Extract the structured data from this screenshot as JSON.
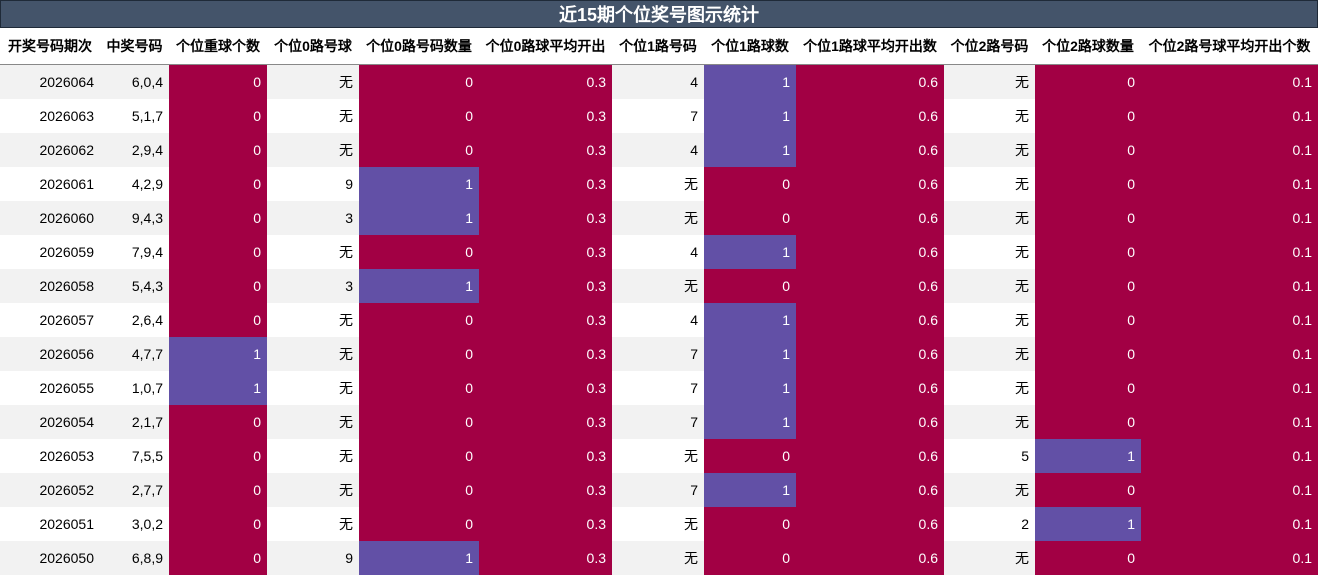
{
  "title": "近15期个位奖号图示统计",
  "colors": {
    "title_bg": "#44546a",
    "zero": "#a20044",
    "one": "#6250a6",
    "stripe": "#f2f2f2"
  },
  "columns": [
    "开奖号码期次",
    "中奖号码",
    "个位重球个数",
    "个位0路号球",
    "个位0路号码数量",
    "个位0路球平均开出",
    "个位1路号码",
    "个位1路球数",
    "个位1路球平均开出数",
    "个位2路号码",
    "个位2路球数量",
    "个位2路号球平均开出个数"
  ],
  "rows": [
    [
      "2026064",
      "6,0,4",
      "0",
      "无",
      "0",
      "0.3",
      "4",
      "1",
      "0.6",
      "无",
      "0",
      "0.1"
    ],
    [
      "2026063",
      "5,1,7",
      "0",
      "无",
      "0",
      "0.3",
      "7",
      "1",
      "0.6",
      "无",
      "0",
      "0.1"
    ],
    [
      "2026062",
      "2,9,4",
      "0",
      "无",
      "0",
      "0.3",
      "4",
      "1",
      "0.6",
      "无",
      "0",
      "0.1"
    ],
    [
      "2026061",
      "4,2,9",
      "0",
      "9",
      "1",
      "0.3",
      "无",
      "0",
      "0.6",
      "无",
      "0",
      "0.1"
    ],
    [
      "2026060",
      "9,4,3",
      "0",
      "3",
      "1",
      "0.3",
      "无",
      "0",
      "0.6",
      "无",
      "0",
      "0.1"
    ],
    [
      "2026059",
      "7,9,4",
      "0",
      "无",
      "0",
      "0.3",
      "4",
      "1",
      "0.6",
      "无",
      "0",
      "0.1"
    ],
    [
      "2026058",
      "5,4,3",
      "0",
      "3",
      "1",
      "0.3",
      "无",
      "0",
      "0.6",
      "无",
      "0",
      "0.1"
    ],
    [
      "2026057",
      "2,6,4",
      "0",
      "无",
      "0",
      "0.3",
      "4",
      "1",
      "0.6",
      "无",
      "0",
      "0.1"
    ],
    [
      "2026056",
      "4,7,7",
      "1",
      "无",
      "0",
      "0.3",
      "7",
      "1",
      "0.6",
      "无",
      "0",
      "0.1"
    ],
    [
      "2026055",
      "1,0,7",
      "1",
      "无",
      "0",
      "0.3",
      "7",
      "1",
      "0.6",
      "无",
      "0",
      "0.1"
    ],
    [
      "2026054",
      "2,1,7",
      "0",
      "无",
      "0",
      "0.3",
      "7",
      "1",
      "0.6",
      "无",
      "0",
      "0.1"
    ],
    [
      "2026053",
      "7,5,5",
      "0",
      "无",
      "0",
      "0.3",
      "无",
      "0",
      "0.6",
      "5",
      "1",
      "0.1"
    ],
    [
      "2026052",
      "2,7,7",
      "0",
      "无",
      "0",
      "0.3",
      "7",
      "1",
      "0.6",
      "无",
      "0",
      "0.1"
    ],
    [
      "2026051",
      "3,0,2",
      "0",
      "无",
      "0",
      "0.3",
      "无",
      "0",
      "0.6",
      "2",
      "1",
      "0.1"
    ],
    [
      "2026050",
      "6,8,9",
      "0",
      "9",
      "1",
      "0.3",
      "无",
      "0",
      "0.6",
      "无",
      "0",
      "0.1"
    ]
  ]
}
